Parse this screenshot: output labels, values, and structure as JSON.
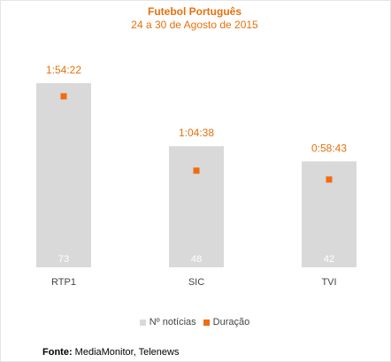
{
  "source": {
    "label": "Fonte:",
    "text": "MediaMonitor, Telenews"
  },
  "colors": {
    "bar": "#d9d9d9",
    "marker": "#f26c0d",
    "title": "#e8700d",
    "bar_label": "#ffffff",
    "tick": "#444444"
  },
  "chart_data": {
    "type": "bar",
    "title": "Futebol Português",
    "subtitle": "24 a 30 de Agosto de 2015",
    "categories": [
      "RTP1",
      "SIC",
      "TVI"
    ],
    "series": [
      {
        "name": "Nº notícias",
        "type": "bar",
        "axis": "left",
        "values": [
          73,
          48,
          42
        ],
        "labels": [
          "73",
          "48",
          "42"
        ]
      },
      {
        "name": "Duração",
        "type": "marker",
        "axis": "right",
        "values_seconds": [
          6862,
          3878,
          3523
        ],
        "labels": [
          "1:54:22",
          "1:04:38",
          "0:58:43"
        ]
      }
    ],
    "ylim_left": [
      0,
      80
    ],
    "ylim_right_seconds": [
      0,
      8100
    ],
    "grid": false,
    "legend_position": "bottom"
  }
}
